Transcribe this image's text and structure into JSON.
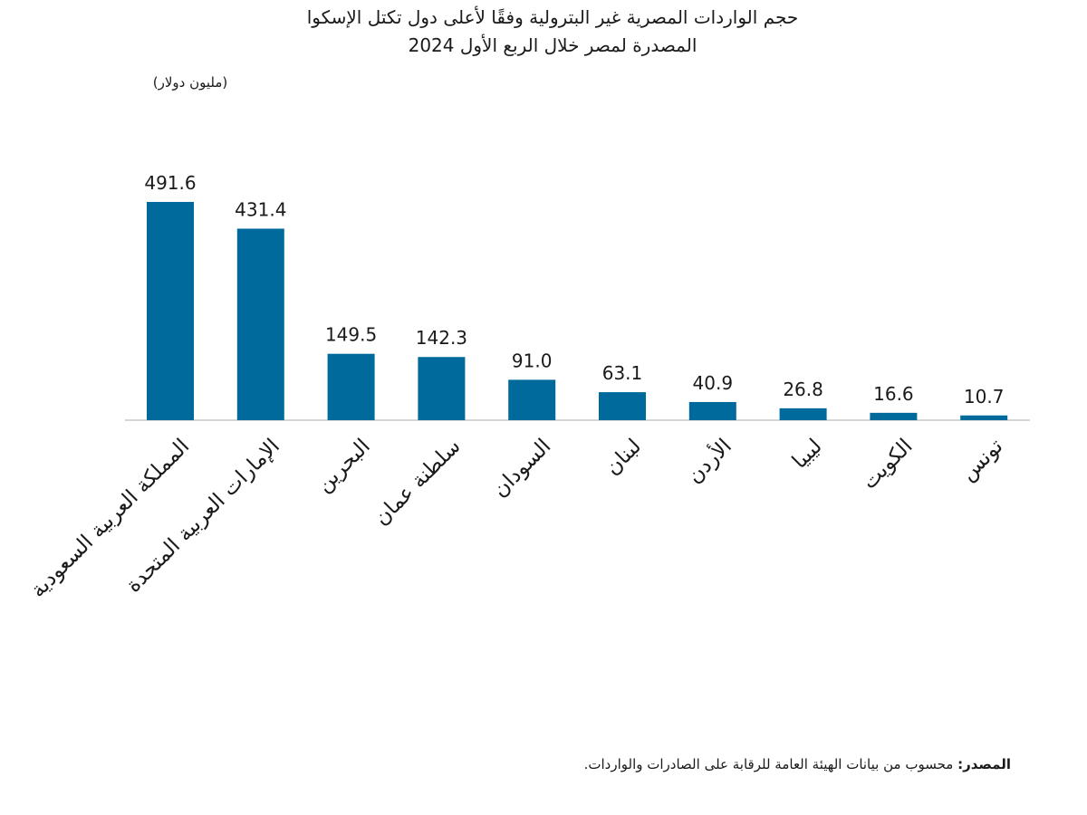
{
  "chart_data": {
    "type": "bar",
    "title_lines": [
      "حجم الواردات المصرية غير البترولية وفقًا لأعلى دول تكتل الإسكوا",
      "المصدرة لمصر خلال الربع الأول 2024"
    ],
    "unit_label": "(مليون دولار)",
    "categories": [
      "المملكة العربية السعودية",
      "الإمارات العربية المتحدة",
      "البحرين",
      "سلطنة عمان",
      "السودان",
      "لبنان",
      "الأردن",
      "ليبيا",
      "الكويت",
      "تونس"
    ],
    "values": [
      491.6,
      431.4,
      149.5,
      142.3,
      91.0,
      63.1,
      40.9,
      26.8,
      16.6,
      10.7
    ],
    "ylim": [
      0,
      500
    ],
    "grid": false,
    "bar_color": "#006a9c",
    "baseline_color": "#c8c8c8"
  },
  "source": {
    "label": "المصدر:",
    "text": "محسوب من بيانات الهيئة العامة للرقابة على الصادرات والواردات."
  }
}
